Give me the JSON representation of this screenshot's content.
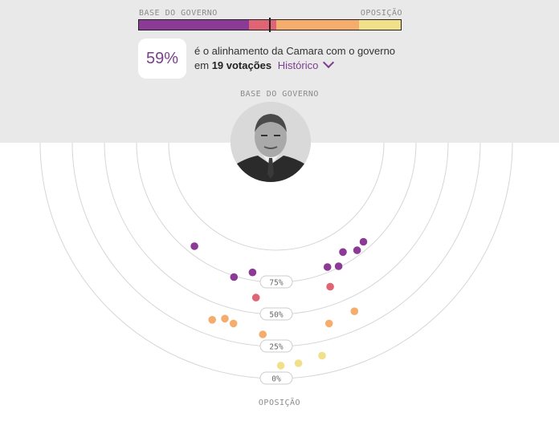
{
  "header": {
    "base_label": "BASE DO GOVERNO",
    "opposition_label": "OPOSIÇÃO",
    "alignment_pct": "59%",
    "sentence_line1": "é o alinhamento da Camara com o governo",
    "sentence_prefix": "em",
    "votes_count": "19 votações",
    "history_link": "Histórico"
  },
  "colors": {
    "strong_base": "#8b3a96",
    "base": "#e06473",
    "lean_opp": "#f4ad6d",
    "opposition": "#f0e08a",
    "accent": "#7b3f8f"
  },
  "alignment_bar": {
    "segments": [
      {
        "name": "strong-base",
        "fraction": 0.42,
        "color": "#8b3a96"
      },
      {
        "name": "base",
        "fraction": 0.105,
        "color": "#e06473"
      },
      {
        "name": "lean-opposition",
        "fraction": 0.315,
        "color": "#f4ad6d"
      },
      {
        "name": "opposition",
        "fraction": 0.16,
        "color": "#f0e08a"
      }
    ],
    "marker_value": 0.5
  },
  "chart_data": {
    "type": "scatter",
    "title": "",
    "axis_top_label": "BASE DO GOVERNO",
    "axis_bottom_label": "OPOSIÇÃO",
    "ring_labels": [
      "75%",
      "50%",
      "25%",
      "0%"
    ],
    "ring_values": [
      75,
      50,
      25,
      0
    ],
    "points": [
      {
        "x": -0.62,
        "y": 81,
        "color": "#8b3a96"
      },
      {
        "x": -0.18,
        "y": 81,
        "color": "#8b3a96"
      },
      {
        "x": -0.3,
        "y": 74,
        "color": "#8b3a96"
      },
      {
        "x": 0.38,
        "y": 79,
        "color": "#8b3a96"
      },
      {
        "x": 0.52,
        "y": 84,
        "color": "#8b3a96"
      },
      {
        "x": 0.45,
        "y": 76,
        "color": "#8b3a96"
      },
      {
        "x": 0.6,
        "y": 79,
        "color": "#8b3a96"
      },
      {
        "x": 0.66,
        "y": 81,
        "color": "#8b3a96"
      },
      {
        "x": -0.13,
        "y": 62,
        "color": "#e06473"
      },
      {
        "x": 0.35,
        "y": 64,
        "color": "#e06473"
      },
      {
        "x": -0.28,
        "y": 41,
        "color": "#f4ad6d"
      },
      {
        "x": -0.23,
        "y": 39,
        "color": "#f4ad6d"
      },
      {
        "x": -0.34,
        "y": 37,
        "color": "#f4ad6d"
      },
      {
        "x": -0.07,
        "y": 34,
        "color": "#f4ad6d"
      },
      {
        "x": 0.28,
        "y": 37,
        "color": "#f4ad6d"
      },
      {
        "x": 0.42,
        "y": 39,
        "color": "#f4ad6d"
      },
      {
        "x": 0.21,
        "y": 14,
        "color": "#f0e08a"
      },
      {
        "x": 0.1,
        "y": 11,
        "color": "#f0e08a"
      },
      {
        "x": 0.02,
        "y": 10,
        "color": "#f0e08a"
      }
    ]
  }
}
